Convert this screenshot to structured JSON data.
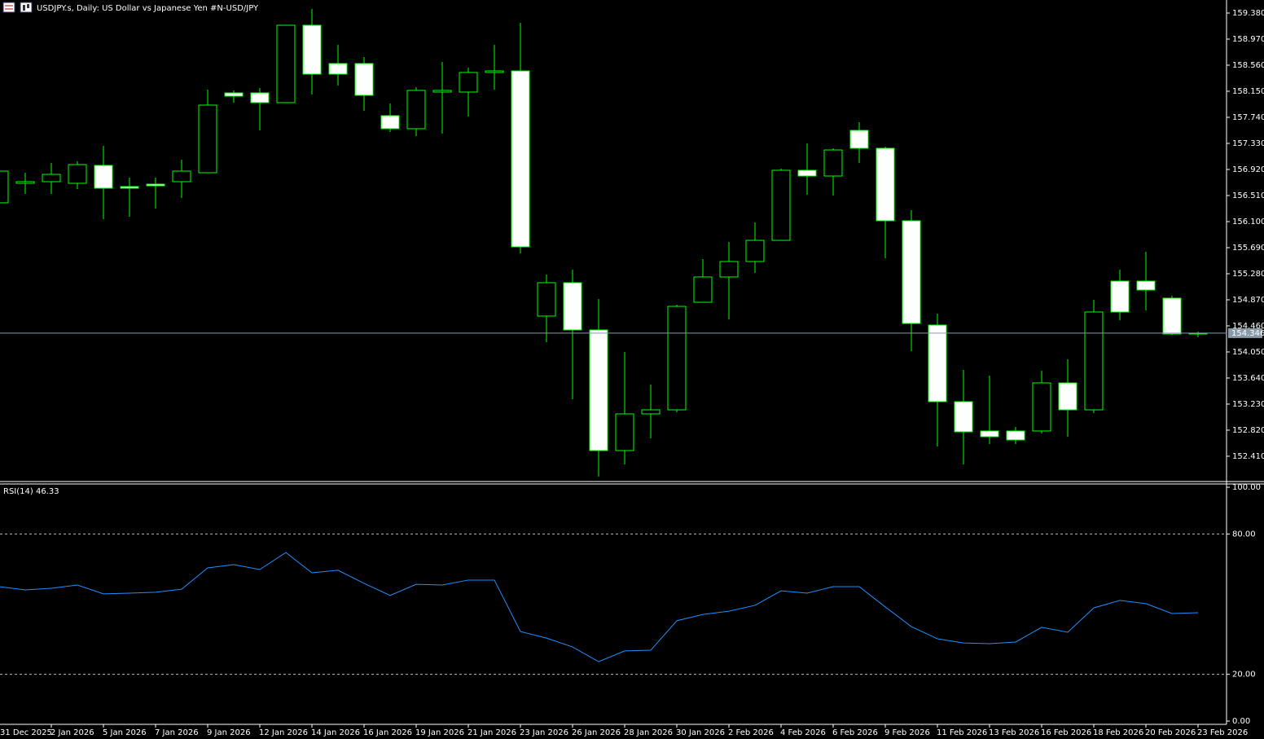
{
  "chart_data": [
    {
      "type": "candlestick",
      "title": "USDJPY.s, Daily:  US Dollar vs  Japanese Yen #N-USD/JPY",
      "categories": [
        "31 Dec 2025",
        null,
        "2 Jan 2026",
        null,
        "5 Jan 2026",
        null,
        "7 Jan 2026",
        null,
        "9 Jan 2026",
        null,
        "12 Jan 2026",
        null,
        "14 Jan 2026",
        null,
        "16 Jan 2026",
        null,
        "19 Jan 2026",
        null,
        "21 Jan 2026",
        null,
        "23 Jan 2026",
        null,
        "26 Jan 2026",
        null,
        "28 Jan 2026",
        null,
        "30 Jan 2026",
        null,
        "2 Feb 2026",
        null,
        "4 Feb 2026",
        null,
        "6 Feb 2026",
        null,
        "9 Feb 2026",
        null,
        "11 Feb 2026",
        null,
        "13 Feb 2026",
        null,
        "16 Feb 2026",
        null,
        "18 Feb 2026",
        null,
        "20 Feb 2026",
        null,
        "23 Feb 2026"
      ],
      "open": [
        156.395,
        156.702,
        156.728,
        156.702,
        156.984,
        156.651,
        156.689,
        156.728,
        156.869,
        158.124,
        158.124,
        157.971,
        159.188,
        158.586,
        158.586,
        157.766,
        157.561,
        158.137,
        158.137,
        158.445,
        158.47,
        154.614,
        155.139,
        154.396,
        152.499,
        153.076,
        153.14,
        154.831,
        155.229,
        155.472,
        155.805,
        156.907,
        156.817,
        157.535,
        157.253,
        156.113,
        154.473,
        153.268,
        152.807,
        152.807,
        152.807,
        153.563,
        153.14,
        155.164,
        155.164,
        154.896,
        154.345
      ],
      "high": [
        156.92,
        156.869,
        157.022,
        157.049,
        157.292,
        156.792,
        156.792,
        157.074,
        158.176,
        158.163,
        158.201,
        159.188,
        159.444,
        158.88,
        158.688,
        157.958,
        158.214,
        158.611,
        158.522,
        158.88,
        159.226,
        155.267,
        155.344,
        154.883,
        154.05,
        153.537,
        154.793,
        155.51,
        155.78,
        156.087,
        156.933,
        157.33,
        157.253,
        157.663,
        157.279,
        156.279,
        154.652,
        153.768,
        153.678,
        152.871,
        153.755,
        153.935,
        154.87,
        155.344,
        155.626,
        154.934,
        154.37
      ],
      "low": [
        156.382,
        156.536,
        156.536,
        156.612,
        156.138,
        156.177,
        156.305,
        156.472,
        156.869,
        157.971,
        157.535,
        157.971,
        158.099,
        158.24,
        157.842,
        157.509,
        157.445,
        157.484,
        157.753,
        158.176,
        155.6,
        154.204,
        153.307,
        152.09,
        152.282,
        152.691,
        153.102,
        154.831,
        154.562,
        155.293,
        155.805,
        156.523,
        156.51,
        157.022,
        155.523,
        154.063,
        152.563,
        152.282,
        152.602,
        152.602,
        152.768,
        152.717,
        153.089,
        154.55,
        154.703,
        154.319,
        154.281
      ],
      "close": [
        156.894,
        156.728,
        156.843,
        156.997,
        156.625,
        156.625,
        156.663,
        156.894,
        157.932,
        158.073,
        157.971,
        159.188,
        158.419,
        158.419,
        158.086,
        157.561,
        158.163,
        158.163,
        158.445,
        158.47,
        155.703,
        155.139,
        154.396,
        152.499,
        153.076,
        153.14,
        154.767,
        155.229,
        155.472,
        155.805,
        156.907,
        156.817,
        157.227,
        157.253,
        156.113,
        154.498,
        153.268,
        152.794,
        152.717,
        152.666,
        153.563,
        153.14,
        154.678,
        154.678,
        155.024,
        154.332,
        154.332
      ],
      "bull_color": "#000000",
      "bear_color": "#ffffff",
      "outline_color": "#00ff00",
      "ylim": [
        152.025,
        159.585
      ],
      "yticks": [
        {
          "value": 159.38,
          "label": "159.380"
        },
        {
          "value": 158.97,
          "label": "158.970"
        },
        {
          "value": 158.56,
          "label": "158.560"
        },
        {
          "value": 158.15,
          "label": "158.150"
        },
        {
          "value": 157.74,
          "label": "157.740"
        },
        {
          "value": 157.33,
          "label": "157.330"
        },
        {
          "value": 156.92,
          "label": "156.920"
        },
        {
          "value": 156.51,
          "label": "156.510"
        },
        {
          "value": 156.1,
          "label": "156.100"
        },
        {
          "value": 155.69,
          "label": "155.690"
        },
        {
          "value": 155.28,
          "label": "155.280"
        },
        {
          "value": 154.87,
          "label": "154.870"
        },
        {
          "value": 154.46,
          "label": "154.460"
        },
        {
          "value": 154.05,
          "label": "154.050"
        },
        {
          "value": 153.64,
          "label": "153.640"
        },
        {
          "value": 153.23,
          "label": "153.230"
        },
        {
          "value": 152.82,
          "label": "152.820"
        },
        {
          "value": 152.41,
          "label": "152.410"
        }
      ],
      "current_price": 154.346
    },
    {
      "type": "line",
      "title": "RSI(14) 46.33",
      "color": "#1e90ff",
      "values": [
        57.5,
        56.1,
        56.8,
        58.2,
        54.4,
        54.7,
        55.1,
        56.4,
        65.5,
        66.9,
        64.8,
        72.1,
        63.4,
        64.5,
        58.9,
        53.7,
        58.5,
        58.2,
        60.3,
        60.3,
        38.3,
        35.5,
        31.7,
        25.4,
        30.0,
        30.3,
        42.9,
        45.6,
        47.0,
        49.5,
        55.7,
        54.7,
        57.5,
        57.5,
        48.8,
        40.4,
        35.2,
        33.4,
        33.1,
        33.8,
        40.1,
        38.0,
        48.4,
        51.6,
        50.2,
        46.0,
        46.33
      ],
      "ylim": [
        0,
        100
      ],
      "yticks": [
        {
          "value": 100,
          "label": "100.00"
        },
        {
          "value": 80,
          "label": "80.00"
        },
        {
          "value": 20,
          "label": "20.00"
        },
        {
          "value": 0,
          "label": "0.00"
        }
      ],
      "levels": [
        20,
        80
      ]
    }
  ]
}
